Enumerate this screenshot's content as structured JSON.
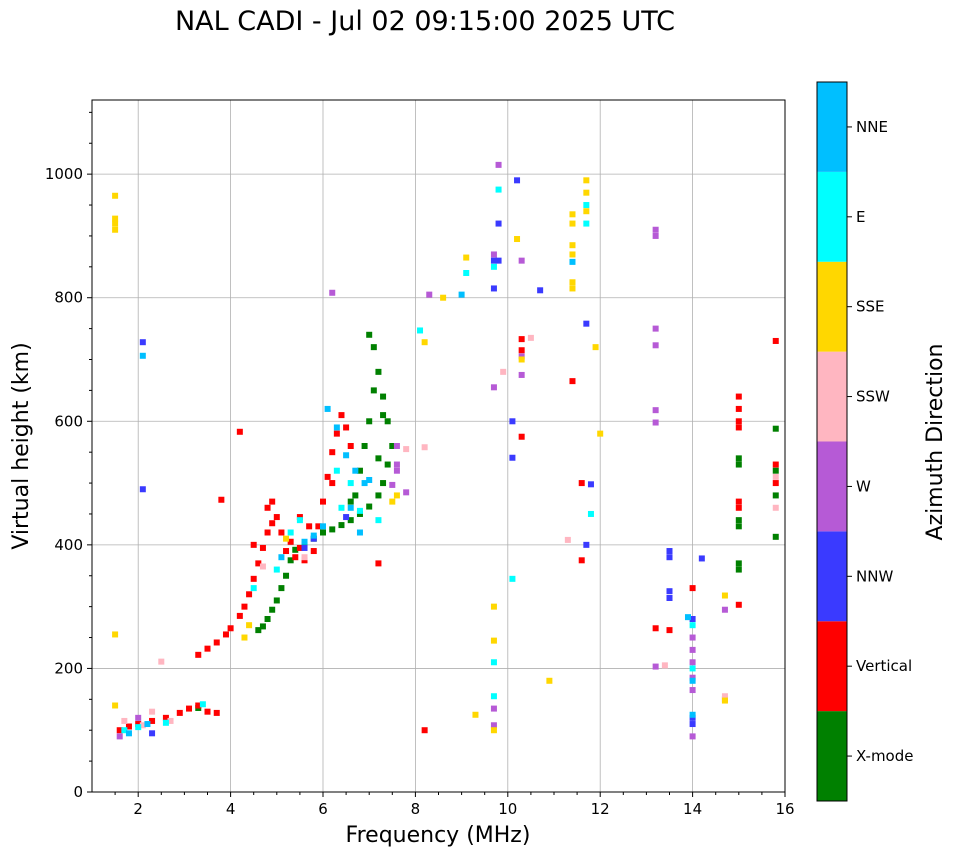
{
  "chart_data": {
    "type": "scatter",
    "title": "NAL CADI - Jul 02 09:15:00 2025 UTC",
    "xlabel": "Frequency (MHz)",
    "ylabel": "Virtual height (km)",
    "xlim": [
      1,
      16
    ],
    "ylim": [
      0,
      1120
    ],
    "xticks": [
      2,
      4,
      6,
      8,
      10,
      12,
      14,
      16
    ],
    "yticks": [
      0,
      200,
      400,
      600,
      800,
      1000
    ],
    "grid": true,
    "colorbar": {
      "label": "Azimuth Direction",
      "categories": [
        {
          "name": "X-mode",
          "color": "#008000"
        },
        {
          "name": "Vertical",
          "color": "#ff0000"
        },
        {
          "name": "NNW",
          "color": "#3a3aff"
        },
        {
          "name": "W",
          "color": "#b65ad6"
        },
        {
          "name": "SSW",
          "color": "#ffb6c1"
        },
        {
          "name": "SSE",
          "color": "#ffd700"
        },
        {
          "name": "E",
          "color": "#00ffff"
        },
        {
          "name": "NNE",
          "color": "#00bfff"
        }
      ]
    },
    "series": [
      {
        "name": "X-mode",
        "points": [
          [
            4.6,
            262
          ],
          [
            4.7,
            268
          ],
          [
            4.8,
            280
          ],
          [
            4.9,
            295
          ],
          [
            5.0,
            310
          ],
          [
            5.1,
            330
          ],
          [
            5.2,
            350
          ],
          [
            5.3,
            375
          ],
          [
            5.4,
            392
          ],
          [
            5.6,
            400
          ],
          [
            5.8,
            410
          ],
          [
            6.0,
            420
          ],
          [
            6.2,
            425
          ],
          [
            6.4,
            432
          ],
          [
            6.6,
            440
          ],
          [
            6.8,
            450
          ],
          [
            7.0,
            462
          ],
          [
            7.2,
            480
          ],
          [
            7.3,
            500
          ],
          [
            7.4,
            530
          ],
          [
            7.5,
            560
          ],
          [
            7.4,
            600
          ],
          [
            7.3,
            640
          ],
          [
            7.2,
            680
          ],
          [
            7.1,
            720
          ],
          [
            7.0,
            740
          ],
          [
            6.8,
            520
          ],
          [
            6.9,
            560
          ],
          [
            7.0,
            600
          ],
          [
            6.7,
            480
          ],
          [
            7.1,
            650
          ],
          [
            7.2,
            540
          ],
          [
            6.6,
            470
          ],
          [
            7.3,
            610
          ],
          [
            3.3,
            136
          ],
          [
            15.0,
            370
          ],
          [
            15.0,
            360
          ],
          [
            15.0,
            430
          ],
          [
            15.0,
            440
          ],
          [
            15.0,
            530
          ],
          [
            15.0,
            540
          ],
          [
            15.8,
            413
          ],
          [
            15.8,
            588
          ],
          [
            15.8,
            480
          ],
          [
            15.8,
            520
          ]
        ]
      },
      {
        "name": "Vertical",
        "points": [
          [
            1.6,
            100
          ],
          [
            1.8,
            106
          ],
          [
            2.0,
            110
          ],
          [
            2.3,
            115
          ],
          [
            2.6,
            120
          ],
          [
            2.9,
            128
          ],
          [
            3.1,
            135
          ],
          [
            3.3,
            140
          ],
          [
            3.5,
            130
          ],
          [
            3.7,
            128
          ],
          [
            3.3,
            222
          ],
          [
            3.5,
            232
          ],
          [
            3.7,
            242
          ],
          [
            3.9,
            255
          ],
          [
            4.0,
            265
          ],
          [
            4.2,
            285
          ],
          [
            4.3,
            300
          ],
          [
            4.4,
            320
          ],
          [
            4.5,
            345
          ],
          [
            4.6,
            370
          ],
          [
            4.7,
            395
          ],
          [
            4.8,
            420
          ],
          [
            4.9,
            435
          ],
          [
            5.0,
            445
          ],
          [
            5.2,
            390
          ],
          [
            5.4,
            380
          ],
          [
            5.6,
            375
          ],
          [
            5.8,
            390
          ],
          [
            5.9,
            430
          ],
          [
            6.0,
            470
          ],
          [
            6.1,
            510
          ],
          [
            6.2,
            550
          ],
          [
            6.3,
            580
          ],
          [
            6.4,
            610
          ],
          [
            6.5,
            590
          ],
          [
            6.6,
            560
          ],
          [
            6.2,
            500
          ],
          [
            4.2,
            583
          ],
          [
            3.8,
            473
          ],
          [
            4.9,
            470
          ],
          [
            5.1,
            420
          ],
          [
            5.3,
            405
          ],
          [
            5.5,
            395
          ],
          [
            4.8,
            460
          ],
          [
            4.5,
            400
          ],
          [
            5.5,
            445
          ],
          [
            5.7,
            430
          ],
          [
            7.2,
            370
          ],
          [
            8.2,
            100
          ],
          [
            10.3,
            733
          ],
          [
            10.3,
            715
          ],
          [
            10.3,
            575
          ],
          [
            11.4,
            665
          ],
          [
            11.6,
            500
          ],
          [
            11.6,
            375
          ],
          [
            13.2,
            265
          ],
          [
            13.5,
            262
          ],
          [
            14.0,
            330
          ],
          [
            15.0,
            600
          ],
          [
            15.0,
            620
          ],
          [
            15.0,
            640
          ],
          [
            15.0,
            590
          ],
          [
            15.0,
            470
          ],
          [
            15.0,
            460
          ],
          [
            15.0,
            303
          ],
          [
            15.8,
            730
          ],
          [
            15.8,
            530
          ],
          [
            15.8,
            500
          ]
        ]
      },
      {
        "name": "NNW",
        "points": [
          [
            2.1,
            728
          ],
          [
            2.1,
            490
          ],
          [
            2.3,
            95
          ],
          [
            9.7,
            815
          ],
          [
            9.7,
            860
          ],
          [
            9.8,
            920
          ],
          [
            9.8,
            860
          ],
          [
            10.2,
            990
          ],
          [
            10.7,
            812
          ],
          [
            10.1,
            600
          ],
          [
            10.1,
            541
          ],
          [
            11.7,
            758
          ],
          [
            11.7,
            400
          ],
          [
            13.5,
            390
          ],
          [
            13.5,
            380
          ],
          [
            13.5,
            325
          ],
          [
            13.5,
            314
          ],
          [
            14.0,
            280
          ],
          [
            14.0,
            120
          ],
          [
            14.0,
            110
          ],
          [
            14.2,
            378
          ],
          [
            11.8,
            498
          ],
          [
            6.5,
            445
          ],
          [
            5.6,
            395
          ],
          [
            5.8,
            410
          ]
        ]
      },
      {
        "name": "W",
        "points": [
          [
            6.2,
            808
          ],
          [
            8.3,
            805
          ],
          [
            7.6,
            560
          ],
          [
            7.6,
            530
          ],
          [
            7.6,
            520
          ],
          [
            7.8,
            485
          ],
          [
            9.7,
            870
          ],
          [
            9.8,
            1015
          ],
          [
            9.7,
            655
          ],
          [
            10.3,
            860
          ],
          [
            10.3,
            705
          ],
          [
            10.3,
            675
          ],
          [
            13.2,
            910
          ],
          [
            13.2,
            900
          ],
          [
            13.2,
            750
          ],
          [
            13.2,
            723
          ],
          [
            13.2,
            618
          ],
          [
            13.2,
            598
          ],
          [
            13.2,
            203
          ],
          [
            14.0,
            250
          ],
          [
            14.0,
            230
          ],
          [
            14.0,
            210
          ],
          [
            14.0,
            185
          ],
          [
            14.0,
            165
          ],
          [
            14.0,
            90
          ],
          [
            14.7,
            295
          ],
          [
            14.7,
            150
          ],
          [
            9.7,
            135
          ],
          [
            9.7,
            108
          ],
          [
            7.5,
            497
          ],
          [
            1.6,
            90
          ],
          [
            2.0,
            120
          ]
        ]
      },
      {
        "name": "SSW",
        "points": [
          [
            2.5,
            211
          ],
          [
            2.3,
            130
          ],
          [
            8.2,
            558
          ],
          [
            9.9,
            680
          ],
          [
            10.5,
            735
          ],
          [
            11.3,
            408
          ],
          [
            13.4,
            205
          ],
          [
            14.7,
            155
          ],
          [
            1.7,
            115
          ],
          [
            2.1,
            108
          ],
          [
            2.7,
            115
          ],
          [
            5.6,
            380
          ],
          [
            4.7,
            365
          ],
          [
            7.8,
            555
          ],
          [
            15.8,
            510
          ],
          [
            15.8,
            460
          ]
        ]
      },
      {
        "name": "SSE",
        "points": [
          [
            1.5,
            965
          ],
          [
            1.5,
            928
          ],
          [
            1.5,
            920
          ],
          [
            1.5,
            910
          ],
          [
            1.5,
            255
          ],
          [
            1.5,
            140
          ],
          [
            8.2,
            728
          ],
          [
            8.6,
            800
          ],
          [
            9.1,
            865
          ],
          [
            9.7,
            245
          ],
          [
            9.7,
            300
          ],
          [
            9.3,
            125
          ],
          [
            9.7,
            100
          ],
          [
            10.2,
            895
          ],
          [
            10.3,
            700
          ],
          [
            10.9,
            180
          ],
          [
            11.4,
            935
          ],
          [
            11.4,
            920
          ],
          [
            11.4,
            885
          ],
          [
            11.4,
            870
          ],
          [
            11.4,
            825
          ],
          [
            11.4,
            815
          ],
          [
            11.7,
            990
          ],
          [
            11.7,
            970
          ],
          [
            11.7,
            940
          ],
          [
            12.0,
            580
          ],
          [
            11.9,
            720
          ],
          [
            14.7,
            318
          ],
          [
            14.7,
            148
          ],
          [
            7.6,
            480
          ],
          [
            7.5,
            470
          ],
          [
            4.4,
            270
          ],
          [
            4.3,
            250
          ],
          [
            5.2,
            410
          ]
        ]
      },
      {
        "name": "E",
        "points": [
          [
            8.1,
            747
          ],
          [
            9.1,
            840
          ],
          [
            9.8,
            975
          ],
          [
            9.7,
            850
          ],
          [
            9.7,
            210
          ],
          [
            9.7,
            155
          ],
          [
            10.1,
            345
          ],
          [
            11.7,
            920
          ],
          [
            11.7,
            950
          ],
          [
            11.8,
            450
          ],
          [
            14.0,
            270
          ],
          [
            14.0,
            200
          ],
          [
            1.7,
            100
          ],
          [
            2.0,
            105
          ],
          [
            2.6,
            112
          ],
          [
            4.5,
            330
          ],
          [
            5.0,
            360
          ],
          [
            5.3,
            420
          ],
          [
            5.5,
            440
          ],
          [
            6.3,
            520
          ],
          [
            6.6,
            500
          ],
          [
            6.8,
            455
          ],
          [
            6.4,
            460
          ],
          [
            3.4,
            142
          ],
          [
            7.2,
            440
          ]
        ]
      },
      {
        "name": "NNE",
        "points": [
          [
            2.1,
            706
          ],
          [
            9.0,
            805
          ],
          [
            11.4,
            858
          ],
          [
            13.9,
            283
          ],
          [
            14.0,
            125
          ],
          [
            14.0,
            180
          ],
          [
            6.1,
            620
          ],
          [
            6.3,
            590
          ],
          [
            6.5,
            545
          ],
          [
            6.7,
            520
          ],
          [
            6.9,
            500
          ],
          [
            5.8,
            415
          ],
          [
            5.6,
            405
          ],
          [
            5.1,
            380
          ],
          [
            6.0,
            430
          ],
          [
            6.6,
            460
          ],
          [
            7.0,
            505
          ],
          [
            6.8,
            420
          ],
          [
            1.8,
            95
          ],
          [
            2.2,
            110
          ]
        ]
      }
    ]
  }
}
